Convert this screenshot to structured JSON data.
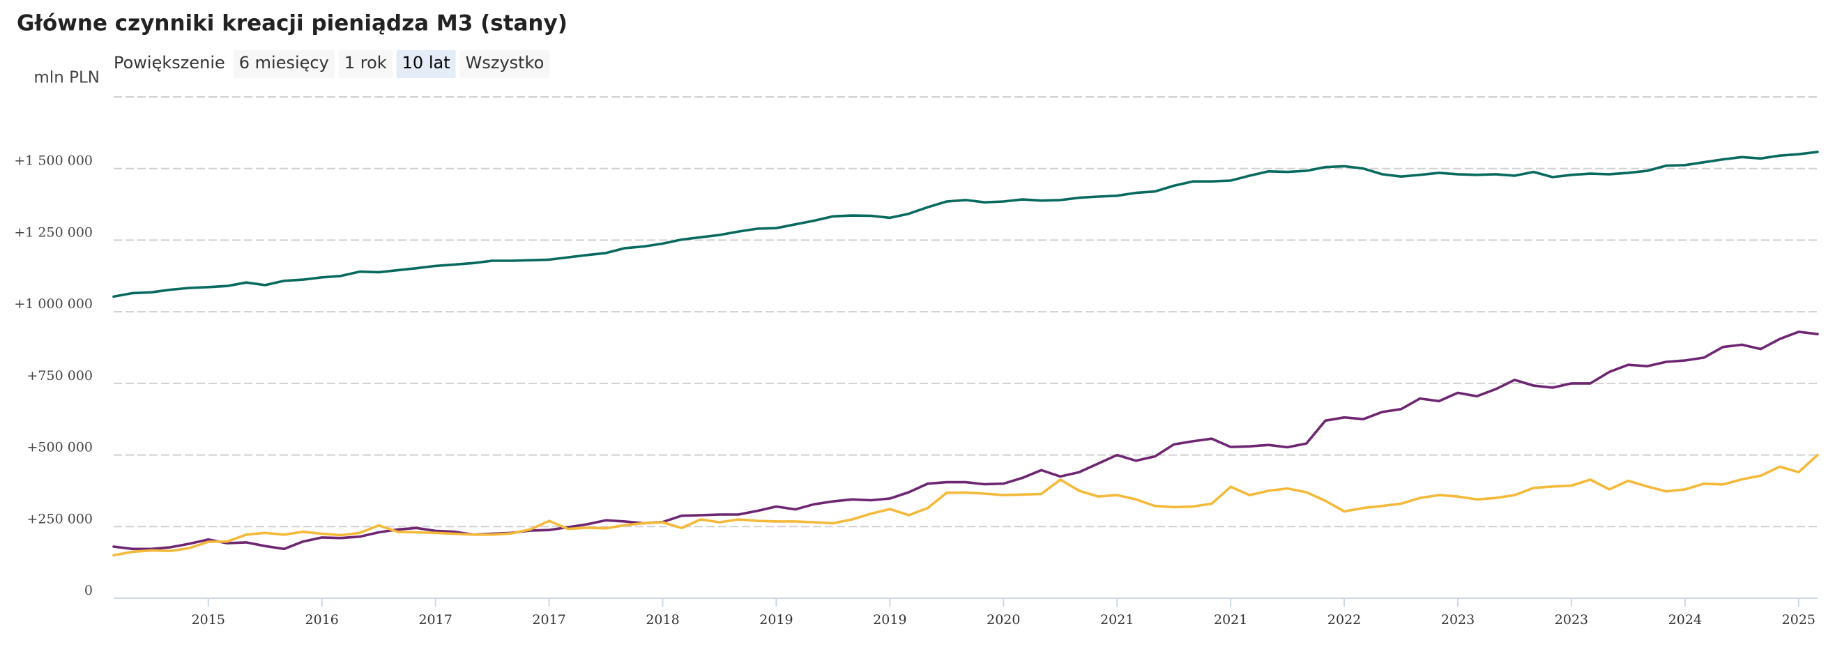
{
  "chart_data": {
    "type": "line",
    "title": "Główne czynniki kreacji pieniądza M3 (stany)",
    "range_selector": {
      "label": "Powiększenie",
      "buttons": [
        "6 miesięcy",
        "1 rok",
        "10 lat",
        "Wszystko"
      ],
      "selected": 2
    },
    "y_axis_label": "mln PLN",
    "categories": [
      null,
      null,
      null,
      null,
      null,
      "2015",
      null,
      null,
      null,
      null,
      null,
      "2016",
      null,
      null,
      null,
      null,
      null,
      "2017",
      null,
      null,
      null,
      null,
      null,
      "2017",
      null,
      null,
      null,
      null,
      null,
      "2018",
      null,
      null,
      null,
      null,
      null,
      "2019",
      null,
      null,
      null,
      null,
      null,
      "2019",
      null,
      null,
      null,
      null,
      null,
      "2020",
      null,
      null,
      null,
      null,
      null,
      "2021",
      null,
      null,
      null,
      null,
      null,
      "2021",
      null,
      null,
      null,
      null,
      null,
      "2022",
      null,
      null,
      null,
      null,
      null,
      "2023",
      null,
      null,
      null,
      null,
      null,
      "2023",
      null,
      null,
      null,
      null,
      null,
      "2024",
      null,
      null,
      null,
      null,
      null,
      "2025",
      null
    ],
    "ylim": [
      0,
      1750000
    ],
    "yticks": [
      0,
      {
        "value": 250000,
        "label": "+250 000"
      },
      {
        "value": 500000,
        "label": "+500 000"
      },
      {
        "value": 750000,
        "label": "+750 000"
      },
      {
        "value": 1000000,
        "label": "+1 000 000"
      },
      {
        "value": 1250000,
        "label": "+1 250 000"
      },
      {
        "value": 1500000,
        "label": "+1 500 000"
      }
    ],
    "grid": true,
    "series": [
      {
        "color": "#08695f",
        "values": [
          1053000,
          1065000,
          1068000,
          1077000,
          1083000,
          1086000,
          1090000,
          1102000,
          1093000,
          1108000,
          1112000,
          1120000,
          1125000,
          1140000,
          1138000,
          1145000,
          1152000,
          1160000,
          1165000,
          1170000,
          1178000,
          1178000,
          1180000,
          1182000,
          1190000,
          1198000,
          1205000,
          1222000,
          1228000,
          1238000,
          1252000,
          1260000,
          1268000,
          1280000,
          1290000,
          1292000,
          1305000,
          1318000,
          1333000,
          1336000,
          1335000,
          1328000,
          1342000,
          1365000,
          1385000,
          1390000,
          1382000,
          1385000,
          1392000,
          1388000,
          1390000,
          1398000,
          1402000,
          1405000,
          1415000,
          1420000,
          1440000,
          1455000,
          1455000,
          1458000,
          1475000,
          1490000,
          1488000,
          1492000,
          1505000,
          1508000,
          1500000,
          1480000,
          1472000,
          1478000,
          1485000,
          1480000,
          1478000,
          1480000,
          1475000,
          1488000,
          1470000,
          1478000,
          1482000,
          1480000,
          1485000,
          1492000,
          1510000,
          1512000,
          1522000,
          1532000,
          1540000,
          1535000,
          1545000,
          1550000,
          1558000
        ]
      },
      {
        "color": "#6e2672",
        "values": [
          180000,
          172000,
          172000,
          178000,
          190000,
          205000,
          192000,
          195000,
          182000,
          172000,
          198000,
          212000,
          210000,
          215000,
          230000,
          240000,
          245000,
          235000,
          232000,
          222000,
          225000,
          228000,
          236000,
          238000,
          248000,
          258000,
          272000,
          268000,
          262000,
          266000,
          288000,
          290000,
          292000,
          292000,
          305000,
          320000,
          310000,
          328000,
          338000,
          345000,
          342000,
          348000,
          370000,
          400000,
          405000,
          405000,
          398000,
          400000,
          420000,
          447000,
          425000,
          440000,
          470000,
          500000,
          480000,
          495000,
          537000,
          548000,
          557000,
          528000,
          530000,
          535000,
          527000,
          540000,
          620000,
          631000,
          625000,
          650000,
          660000,
          697000,
          688000,
          717000,
          705000,
          730000,
          762000,
          742000,
          735000,
          750000,
          750000,
          790000,
          815000,
          810000,
          825000,
          830000,
          840000,
          877000,
          885000,
          870000,
          905000,
          930000,
          922000
        ]
      },
      {
        "color": "#f5b93a",
        "values": [
          150000,
          162000,
          167000,
          165000,
          175000,
          197000,
          198000,
          222000,
          228000,
          222000,
          232000,
          225000,
          220000,
          228000,
          254000,
          232000,
          230000,
          228000,
          225000,
          222000,
          222000,
          226000,
          240000,
          270000,
          242000,
          246000,
          244000,
          255000,
          262000,
          265000,
          245000,
          275000,
          265000,
          275000,
          270000,
          268000,
          268000,
          265000,
          262000,
          275000,
          295000,
          311000,
          290000,
          315000,
          368000,
          369000,
          365000,
          360000,
          362000,
          364000,
          414000,
          375000,
          355000,
          360000,
          345000,
          322000,
          318000,
          320000,
          330000,
          389000,
          360000,
          375000,
          383000,
          370000,
          340000,
          303000,
          315000,
          322000,
          330000,
          350000,
          360000,
          355000,
          345000,
          350000,
          360000,
          385000,
          390000,
          393000,
          414000,
          380000,
          410000,
          390000,
          373000,
          380000,
          400000,
          397000,
          415000,
          428000,
          459000,
          440000,
          500000
        ]
      }
    ]
  }
}
